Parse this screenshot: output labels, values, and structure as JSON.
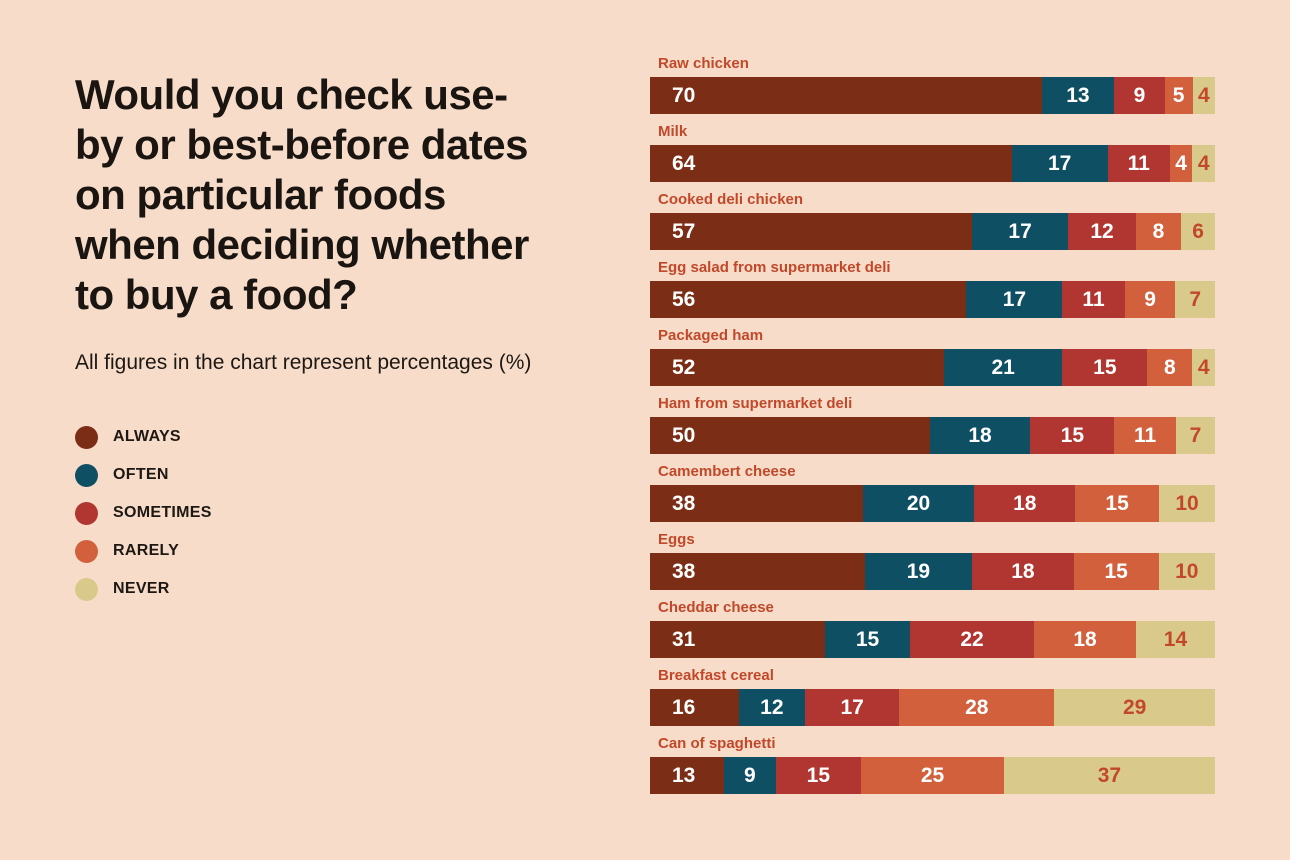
{
  "header": {
    "title_lines": [
      "Would you check use-",
      "by or best-before dates",
      "on particular foods",
      "when deciding whether",
      "to buy a food?"
    ],
    "subtitle": "All figures in the chart represent percentages (%)"
  },
  "colors": {
    "background": "#f7dcca",
    "accent": "#c2482a",
    "title_text": "#1a1510"
  },
  "chart_data": {
    "type": "bar",
    "variant": "horizontal-stacked",
    "title": "Would you check use-by or best-before dates on particular foods when deciding whether to buy a food?",
    "subtitle": "All figures in the chart represent percentages (%)",
    "unit": "%",
    "value_labels": "inside",
    "legend_position": "left",
    "axes_hidden": true,
    "categories": [
      "Raw chicken",
      "Milk",
      "Cooked deli chicken",
      "Egg salad from supermarket deli",
      "Packaged ham",
      "Ham from supermarket deli",
      "Camembert cheese",
      "Eggs",
      "Cheddar cheese",
      "Breakfast cereal",
      "Can of spaghetti"
    ],
    "series": [
      {
        "name": "ALWAYS",
        "color": "#7c2d16",
        "values": [
          70,
          64,
          57,
          56,
          52,
          50,
          38,
          38,
          31,
          16,
          13
        ]
      },
      {
        "name": "OFTEN",
        "color": "#0e4f63",
        "values": [
          13,
          17,
          17,
          17,
          21,
          18,
          20,
          19,
          15,
          12,
          9
        ]
      },
      {
        "name": "SOMETIMES",
        "color": "#b13530",
        "values": [
          9,
          11,
          12,
          11,
          15,
          15,
          18,
          18,
          22,
          17,
          15
        ]
      },
      {
        "name": "RARELY",
        "color": "#d2603c",
        "values": [
          5,
          4,
          8,
          9,
          8,
          11,
          15,
          15,
          18,
          28,
          25
        ]
      },
      {
        "name": "NEVER",
        "color": "#d9ca8c",
        "values": [
          4,
          4,
          6,
          7,
          4,
          7,
          10,
          10,
          14,
          29,
          37
        ]
      }
    ]
  }
}
